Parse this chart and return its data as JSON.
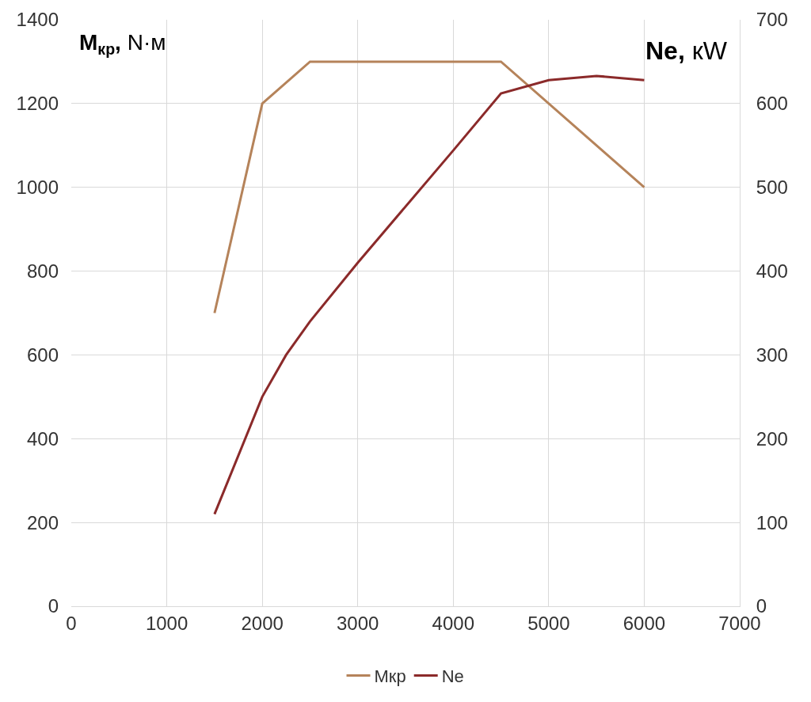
{
  "chart_data": {
    "type": "line",
    "ylabel": "M$_{кр}$, N·м",
    "y2label": "Ne, кW",
    "xlim": [
      0,
      7000
    ],
    "xticks": [
      0,
      1000,
      2000,
      3000,
      4000,
      5000,
      6000,
      7000
    ],
    "ylim": [
      0,
      1400
    ],
    "yticks": [
      0,
      200,
      400,
      600,
      800,
      1000,
      1200,
      1400
    ],
    "y2lim": [
      0,
      700
    ],
    "y2ticks": [
      0,
      100,
      200,
      300,
      400,
      500,
      600,
      700
    ],
    "grid": true,
    "legend": "bottom",
    "marker": "none",
    "line_style": "solid",
    "series": [
      {
        "name": "Мкр",
        "color": "#b5835a",
        "x": [
          1500,
          2000,
          2500,
          4500,
          6000
        ],
        "values": [
          700,
          1200,
          1300,
          1300,
          1000
        ]
      },
      {
        "name": "Ne",
        "color": "#8b2a2a",
        "axis": "y2",
        "x": [
          1500,
          2000,
          2250,
          2500,
          3000,
          4000,
          4500,
          5000,
          5500,
          6000
        ],
        "values": [
          110,
          250,
          300,
          340,
          410,
          544,
          612,
          628,
          633,
          628
        ]
      }
    ]
  }
}
